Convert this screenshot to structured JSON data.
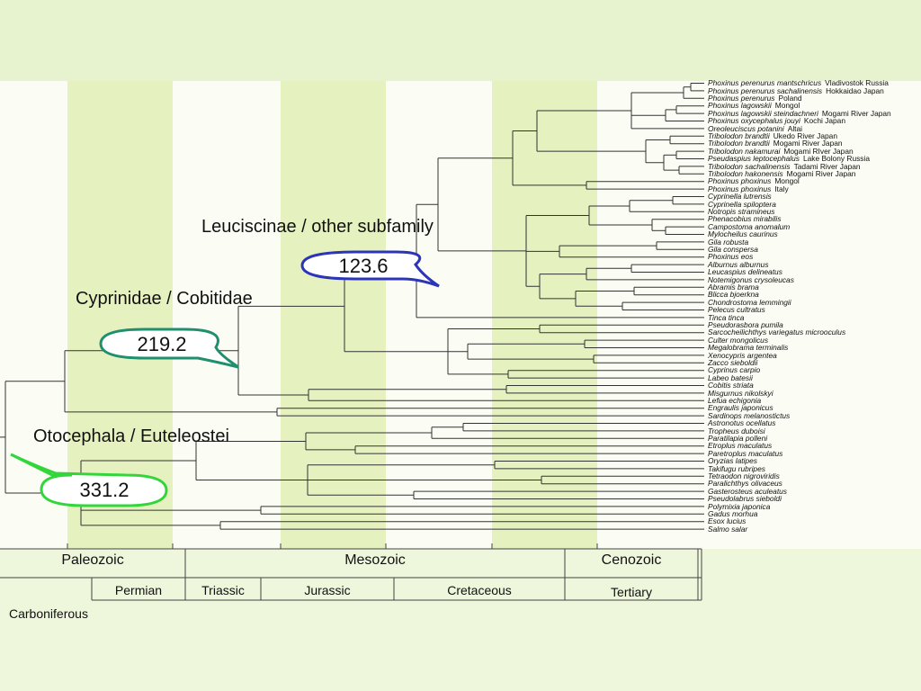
{
  "clades": {
    "leuciscinae": "Leuciscinae / other subfamily",
    "cyprinidae": "Cyprinidae / Cobitidae",
    "otocephala": "Otocephala / Euteleostei"
  },
  "bubbles": {
    "leuciscinae_age": "123.6",
    "cyprinidae_age": "219.2",
    "otocephala_age": "331.2"
  },
  "bubble_colors": {
    "blue": "#2c35b8",
    "teal": "#1f8f6e",
    "green": "#32d63a"
  },
  "taxa": [
    {
      "name": "Phoxinus perenurus mantschricus",
      "loc": "Vladivostok Russia"
    },
    {
      "name": "Phoxinus perenurus sachalinensis",
      "loc": "Hokkaidao Japan"
    },
    {
      "name": "Phoxinus perenurus",
      "loc": "Poland"
    },
    {
      "name": "Phoxinus lagowskii",
      "loc": "Mongol"
    },
    {
      "name": "Phoxinus lagowskii steindachneri",
      "loc": "Mogami River Japan"
    },
    {
      "name": "Phoxinus oxycephalus jouyi",
      "loc": "Kochi Japan"
    },
    {
      "name": "Oreoleuciscus potanini",
      "loc": "Altai"
    },
    {
      "name": "Tribolodon brandtii",
      "loc": "Ukedo River Japan"
    },
    {
      "name": "Tribolodon brandtii",
      "loc": "Mogami River Japan"
    },
    {
      "name": "Tribolodon nakamurai",
      "loc": "Mogami RIver Japan"
    },
    {
      "name": "Pseudaspius leptocephalus",
      "loc": "Lake Bolony Russia"
    },
    {
      "name": "Tribolodon sachalinensis",
      "loc": "Tadami River Japan"
    },
    {
      "name": "Tribolodon hakonensis",
      "loc": "Mogami River Japan"
    },
    {
      "name": "Phoxinus phoxinus",
      "loc": "Mongol"
    },
    {
      "name": "Phoxinus phoxinus",
      "loc": "Italy"
    },
    {
      "name": "Cyprinella lutrensis",
      "loc": ""
    },
    {
      "name": "Cyprinella spiloptera",
      "loc": ""
    },
    {
      "name": "Notropis stramineus",
      "loc": ""
    },
    {
      "name": "Phenacobius mirabilis",
      "loc": ""
    },
    {
      "name": "Campostoma anomalum",
      "loc": ""
    },
    {
      "name": "Mylocheilus caurinus",
      "loc": ""
    },
    {
      "name": "Gila robusta",
      "loc": ""
    },
    {
      "name": "Gila conspersa",
      "loc": ""
    },
    {
      "name": "Phoxinus eos",
      "loc": ""
    },
    {
      "name": "Alburnus alburnus",
      "loc": ""
    },
    {
      "name": "Leucaspius delineatus",
      "loc": ""
    },
    {
      "name": "Notemigonus crysoleucas",
      "loc": ""
    },
    {
      "name": "Abramis brama",
      "loc": ""
    },
    {
      "name": "Blicca bjoerkna",
      "loc": ""
    },
    {
      "name": "Chondrostoma lemmingii",
      "loc": ""
    },
    {
      "name": "Pelecus cultratus",
      "loc": ""
    },
    {
      "name": "Tinca tinca",
      "loc": ""
    },
    {
      "name": "Pseudorasbora pumila",
      "loc": ""
    },
    {
      "name": "Sarcocheilichthys variegatus microoculus",
      "loc": ""
    },
    {
      "name": "Culter mongolicus",
      "loc": ""
    },
    {
      "name": "Megalobrama terminalis",
      "loc": ""
    },
    {
      "name": "Xenocypris argentea",
      "loc": ""
    },
    {
      "name": "Zacco sieboldii",
      "loc": ""
    },
    {
      "name": "Cyprinus carpio",
      "loc": ""
    },
    {
      "name": "Labeo batesii",
      "loc": ""
    },
    {
      "name": "Cobitis striata",
      "loc": ""
    },
    {
      "name": "Misgurnus nikolskyi",
      "loc": ""
    },
    {
      "name": "Lefua echigonia",
      "loc": ""
    },
    {
      "name": "Engraulis japonicus",
      "loc": ""
    },
    {
      "name": "Sardinops melanostictus",
      "loc": ""
    },
    {
      "name": "Astronotus ocellatus",
      "loc": ""
    },
    {
      "name": "Tropheus duboisi",
      "loc": ""
    },
    {
      "name": "Paratilapia polleni",
      "loc": ""
    },
    {
      "name": "Etroplus maculatus",
      "loc": ""
    },
    {
      "name": "Paretroplus maculatus",
      "loc": ""
    },
    {
      "name": "Oryzias latipes",
      "loc": ""
    },
    {
      "name": "Takifugu rubripes",
      "loc": ""
    },
    {
      "name": "Tetraodon nigroviridis",
      "loc": ""
    },
    {
      "name": "Paralichthys olivaceus",
      "loc": ""
    },
    {
      "name": "Gasterosteus aculeatus",
      "loc": ""
    },
    {
      "name": "Pseudolabrus sieboldi",
      "loc": ""
    },
    {
      "name": "Polymixia japonica",
      "loc": ""
    },
    {
      "name": "Gadus morhua",
      "loc": ""
    },
    {
      "name": "Esox lucius",
      "loc": ""
    },
    {
      "name": "Salmo salar",
      "loc": ""
    }
  ],
  "timescale": {
    "eras": [
      "Paleozoic",
      "Mesozoic",
      "Cenozoic"
    ],
    "periods": [
      "Permian",
      "Triassic",
      "Jurassic",
      "Cretaceous",
      "Tertiary"
    ],
    "carboniferous": "Carboniferous"
  }
}
